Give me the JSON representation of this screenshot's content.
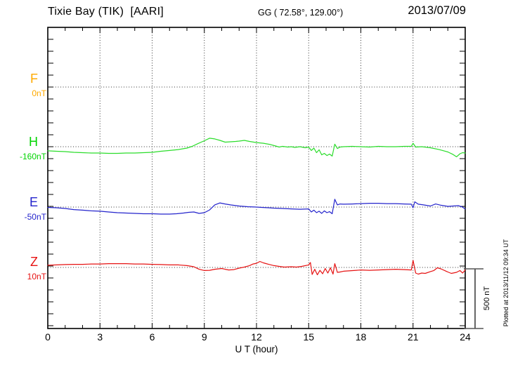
{
  "header": {
    "station_title": "Tixie Bay (TIK)  [AARI]",
    "coords": "GG ( 72.58°, 129.00°)",
    "date": "2013/07/09"
  },
  "axis": {
    "x_label": "U T (hour)",
    "x_ticks": [
      0,
      3,
      6,
      9,
      12,
      15,
      18,
      21,
      24
    ],
    "x_minor_step_hours": 1,
    "x_range": [
      0,
      24
    ]
  },
  "scale_bar": {
    "label": "500 nT",
    "span_nT": 500
  },
  "side_note": "Plotted at 2013/11/12 09:34 UT",
  "chart_data": {
    "type": "line",
    "title": "Tixie Bay (TIK) [AARI] magnetogram",
    "xlabel": "U T (hour)",
    "x_range": [
      0,
      24
    ],
    "units": "nT",
    "nT_per_minor_division": 100,
    "grid": "dotted vertical every 3 h, dotted horizontal at each component baseline",
    "series": [
      {
        "name": "F",
        "label": "F",
        "baseline_label": "0nT",
        "baseline_nT": 0,
        "color": "#FFAA00",
        "points": []
      },
      {
        "name": "H",
        "label": "H",
        "baseline_label": "-160nT",
        "baseline_nT": -160,
        "color": "#2BDD2B",
        "points": [
          [
            0,
            -195
          ],
          [
            0.5,
            -198
          ],
          [
            1,
            -201
          ],
          [
            1.5,
            -207
          ],
          [
            2,
            -210
          ],
          [
            2.5,
            -213
          ],
          [
            3,
            -213
          ],
          [
            3.5,
            -216
          ],
          [
            4,
            -216
          ],
          [
            4.5,
            -213
          ],
          [
            5,
            -213
          ],
          [
            5.5,
            -210
          ],
          [
            6,
            -207
          ],
          [
            6.5,
            -198
          ],
          [
            7,
            -192
          ],
          [
            7.5,
            -184
          ],
          [
            8,
            -172
          ],
          [
            8.3,
            -157
          ],
          [
            8.6,
            -136
          ],
          [
            9,
            -110
          ],
          [
            9.3,
            -89
          ],
          [
            9.6,
            -95
          ],
          [
            9.9,
            -107
          ],
          [
            10.2,
            -122
          ],
          [
            10.5,
            -119
          ],
          [
            10.8,
            -116
          ],
          [
            11,
            -113
          ],
          [
            11.3,
            -107
          ],
          [
            11.6,
            -116
          ],
          [
            12,
            -125
          ],
          [
            12.4,
            -131
          ],
          [
            12.8,
            -142
          ],
          [
            13.1,
            -154
          ],
          [
            13.3,
            -163
          ],
          [
            13.5,
            -157
          ],
          [
            13.8,
            -163
          ],
          [
            14,
            -160
          ],
          [
            14.2,
            -166
          ],
          [
            14.5,
            -160
          ],
          [
            14.8,
            -169
          ],
          [
            15,
            -163
          ],
          [
            15.15,
            -192
          ],
          [
            15.3,
            -172
          ],
          [
            15.45,
            -210
          ],
          [
            15.6,
            -186
          ],
          [
            15.75,
            -228
          ],
          [
            15.9,
            -216
          ],
          [
            16.05,
            -234
          ],
          [
            16.2,
            -222
          ],
          [
            16.35,
            -239
          ],
          [
            16.5,
            -139
          ],
          [
            16.65,
            -175
          ],
          [
            16.8,
            -163
          ],
          [
            17,
            -160
          ],
          [
            17.5,
            -157
          ],
          [
            18,
            -160
          ],
          [
            18.5,
            -163
          ],
          [
            19,
            -157
          ],
          [
            19.5,
            -160
          ],
          [
            20,
            -160
          ],
          [
            20.5,
            -157
          ],
          [
            20.9,
            -157
          ],
          [
            21,
            -131
          ],
          [
            21.15,
            -163
          ],
          [
            21.5,
            -160
          ],
          [
            22,
            -169
          ],
          [
            22.5,
            -184
          ],
          [
            23,
            -204
          ],
          [
            23.3,
            -225
          ],
          [
            23.5,
            -245
          ],
          [
            23.7,
            -219
          ],
          [
            23.85,
            -210
          ],
          [
            24,
            -213
          ]
        ]
      },
      {
        "name": "E",
        "label": "E",
        "baseline_label": "-50nT",
        "baseline_nT": -50,
        "color": "#2424CC",
        "points": [
          [
            0,
            -53
          ],
          [
            0.5,
            -56
          ],
          [
            1,
            -62
          ],
          [
            1.5,
            -71
          ],
          [
            2,
            -76
          ],
          [
            2.5,
            -82
          ],
          [
            3,
            -85
          ],
          [
            3.5,
            -91
          ],
          [
            4,
            -97
          ],
          [
            4.5,
            -100
          ],
          [
            5,
            -103
          ],
          [
            5.5,
            -106
          ],
          [
            6,
            -106
          ],
          [
            6.5,
            -109
          ],
          [
            7,
            -109
          ],
          [
            7.4,
            -106
          ],
          [
            7.8,
            -100
          ],
          [
            8.1,
            -94
          ],
          [
            8.4,
            -91
          ],
          [
            8.7,
            -103
          ],
          [
            9,
            -97
          ],
          [
            9.3,
            -74
          ],
          [
            9.6,
            -32
          ],
          [
            9.9,
            -15
          ],
          [
            10.2,
            -24
          ],
          [
            10.5,
            -32
          ],
          [
            11,
            -41
          ],
          [
            11.5,
            -47
          ],
          [
            12,
            -50
          ],
          [
            12.3,
            -53
          ],
          [
            12.7,
            -56
          ],
          [
            13,
            -59
          ],
          [
            13.5,
            -62
          ],
          [
            14,
            -65
          ],
          [
            14.5,
            -68
          ],
          [
            15,
            -65
          ],
          [
            15.15,
            -91
          ],
          [
            15.3,
            -76
          ],
          [
            15.45,
            -97
          ],
          [
            15.6,
            -85
          ],
          [
            15.75,
            -103
          ],
          [
            15.9,
            -82
          ],
          [
            16.05,
            -97
          ],
          [
            16.2,
            -88
          ],
          [
            16.35,
            -106
          ],
          [
            16.5,
            15
          ],
          [
            16.65,
            -32
          ],
          [
            16.8,
            -24
          ],
          [
            17,
            -26
          ],
          [
            17.5,
            -24
          ],
          [
            18,
            -21
          ],
          [
            18.5,
            -18
          ],
          [
            19,
            -18
          ],
          [
            19.5,
            -21
          ],
          [
            20,
            -21
          ],
          [
            20.5,
            -24
          ],
          [
            20.9,
            -26
          ],
          [
            21,
            -56
          ],
          [
            21.1,
            -6
          ],
          [
            21.3,
            -26
          ],
          [
            21.6,
            -32
          ],
          [
            22,
            -41
          ],
          [
            22.3,
            -24
          ],
          [
            22.6,
            -35
          ],
          [
            23,
            -44
          ],
          [
            23.3,
            -41
          ],
          [
            23.6,
            -38
          ],
          [
            23.8,
            -47
          ],
          [
            24,
            -65
          ]
        ]
      },
      {
        "name": "Z",
        "label": "Z",
        "baseline_label": "10nT",
        "baseline_nT": 10,
        "color": "#E61212",
        "points": [
          [
            0,
            28
          ],
          [
            0.5,
            31
          ],
          [
            1,
            34
          ],
          [
            1.5,
            36
          ],
          [
            2,
            36
          ],
          [
            2.5,
            39
          ],
          [
            3,
            39
          ],
          [
            3.5,
            42
          ],
          [
            4,
            42
          ],
          [
            4.5,
            42
          ],
          [
            5,
            39
          ],
          [
            5.5,
            39
          ],
          [
            6,
            36
          ],
          [
            6.5,
            34
          ],
          [
            7,
            31
          ],
          [
            7.5,
            31
          ],
          [
            8,
            25
          ],
          [
            8.4,
            16
          ],
          [
            8.7,
            -5
          ],
          [
            9,
            -16
          ],
          [
            9.3,
            -14
          ],
          [
            9.6,
            -5
          ],
          [
            10,
            1
          ],
          [
            10.2,
            -5
          ],
          [
            10.4,
            -11
          ],
          [
            10.7,
            -8
          ],
          [
            11,
            4
          ],
          [
            11.3,
            13
          ],
          [
            11.6,
            25
          ],
          [
            11.8,
            39
          ],
          [
            12,
            45
          ],
          [
            12.2,
            60
          ],
          [
            12.4,
            48
          ],
          [
            12.7,
            36
          ],
          [
            13,
            25
          ],
          [
            13.3,
            19
          ],
          [
            13.6,
            13
          ],
          [
            14,
            16
          ],
          [
            14.3,
            13
          ],
          [
            14.6,
            19
          ],
          [
            15,
            31
          ],
          [
            15.1,
            51
          ],
          [
            15.2,
            -49
          ],
          [
            15.35,
            -5
          ],
          [
            15.5,
            -52
          ],
          [
            15.65,
            -14
          ],
          [
            15.8,
            -43
          ],
          [
            15.95,
            1
          ],
          [
            16.1,
            -37
          ],
          [
            16.25,
            7
          ],
          [
            16.4,
            -46
          ],
          [
            16.5,
            42
          ],
          [
            16.65,
            -31
          ],
          [
            16.8,
            -28
          ],
          [
            17,
            -22
          ],
          [
            17.3,
            -19
          ],
          [
            17.6,
            -16
          ],
          [
            18,
            -11
          ],
          [
            18.5,
            -14
          ],
          [
            19,
            -11
          ],
          [
            19.5,
            -8
          ],
          [
            20,
            -5
          ],
          [
            20.5,
            -8
          ],
          [
            20.9,
            -11
          ],
          [
            21,
            69
          ],
          [
            21.15,
            -37
          ],
          [
            21.3,
            -46
          ],
          [
            21.5,
            -37
          ],
          [
            21.7,
            -40
          ],
          [
            22,
            -25
          ],
          [
            22.2,
            -16
          ],
          [
            22.4,
            7
          ],
          [
            22.6,
            -2
          ],
          [
            23,
            -28
          ],
          [
            23.2,
            -40
          ],
          [
            23.5,
            -31
          ],
          [
            23.7,
            -16
          ],
          [
            23.85,
            -37
          ],
          [
            24,
            -11
          ]
        ]
      }
    ]
  }
}
